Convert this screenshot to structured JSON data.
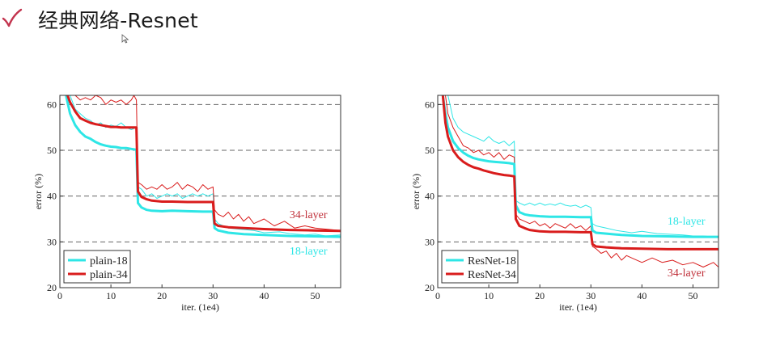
{
  "slide": {
    "title": "经典网络-Resnet",
    "accent_color": "#c2334d",
    "icons": {
      "bullet": "checkmark-icon",
      "cursor": "mouse-pointer-icon"
    }
  },
  "chart_data": [
    {
      "type": "line",
      "title": "",
      "xlabel": "iter. (1e4)",
      "ylabel": "error (%)",
      "xlim": [
        0,
        55
      ],
      "ylim": [
        20,
        62
      ],
      "xticks": [
        0,
        10,
        20,
        30,
        40,
        50
      ],
      "yticks": [
        20,
        30,
        40,
        50,
        60
      ],
      "grid": "dashed horizontal at 30, 40, 50, 60",
      "legend_position": "bottom-left",
      "legend": [
        {
          "label": "plain-18",
          "color": "#2ee6e6"
        },
        {
          "label": "plain-34",
          "color": "#d91c1c"
        }
      ],
      "annotations": [
        {
          "text": "34-layer",
          "x": 45,
          "y": 35.2,
          "color": "#c0303a"
        },
        {
          "text": "18-layer",
          "x": 45,
          "y": 27.2,
          "color": "#2ee6e6"
        }
      ],
      "series": [
        {
          "name": "plain-18",
          "role": "val",
          "color": "#2ee6e6",
          "width": 3,
          "x": [
            1.2,
            2,
            3,
            4,
            5,
            6,
            7,
            8,
            9,
            10,
            11,
            12,
            13,
            14,
            15,
            15.3,
            16,
            17,
            18,
            20,
            22,
            25,
            28,
            30,
            30.3,
            31,
            33,
            36,
            40,
            45,
            50,
            55
          ],
          "y": [
            62,
            58,
            55.5,
            54,
            53,
            52.5,
            51.8,
            51.3,
            51,
            50.8,
            50.7,
            50.5,
            50.5,
            50.3,
            50.1,
            38.5,
            37.5,
            37,
            36.8,
            36.7,
            36.8,
            36.7,
            36.6,
            36.6,
            33,
            32.5,
            32,
            31.7,
            31.5,
            31.3,
            31.2,
            31.1
          ]
        },
        {
          "name": "plain-34",
          "role": "val",
          "color": "#d91c1c",
          "width": 3,
          "x": [
            1.5,
            2,
            3,
            4,
            5,
            6,
            7,
            8,
            9,
            10,
            11,
            12,
            13,
            14,
            15,
            15.3,
            16,
            17,
            18,
            20,
            22,
            25,
            28,
            30,
            30.3,
            31,
            33,
            36,
            40,
            45,
            50,
            55
          ],
          "y": [
            62,
            60.5,
            58.5,
            57,
            56.5,
            56,
            55.7,
            55.5,
            55.3,
            55.1,
            55.1,
            55,
            55,
            55,
            55,
            41,
            39.8,
            39.3,
            39,
            38.8,
            38.8,
            38.7,
            38.7,
            38.7,
            34,
            33.5,
            33.2,
            33,
            32.8,
            32.6,
            32.5,
            32.4
          ]
        },
        {
          "name": "plain-18",
          "role": "train",
          "color": "#2ee6e6",
          "width": 1,
          "x": [
            2,
            3,
            4,
            5,
            6,
            7,
            8,
            9,
            10,
            11,
            12,
            13,
            14,
            15,
            15.3,
            16,
            17,
            18,
            19,
            20,
            21,
            22,
            23,
            24,
            25,
            26,
            27,
            28,
            29,
            30,
            30.3,
            31,
            33,
            35,
            38,
            40,
            43,
            45,
            48,
            50,
            52,
            55
          ],
          "y": [
            62,
            59,
            58,
            57,
            56.5,
            55.5,
            56,
            55,
            55.5,
            55.2,
            56,
            55,
            54.5,
            55,
            42,
            41.5,
            40,
            40.5,
            39.5,
            40,
            40.5,
            40,
            40.5,
            39.5,
            40,
            40.5,
            40,
            40.5,
            40,
            40.5,
            35,
            34,
            33,
            32.8,
            32.5,
            32,
            32.2,
            31.8,
            31.5,
            31.7,
            31.3,
            31.5
          ]
        },
        {
          "name": "plain-34",
          "role": "train",
          "color": "#d91c1c",
          "width": 1,
          "x": [
            3,
            4,
            5,
            6,
            7,
            8,
            9,
            10,
            11,
            12,
            13,
            14,
            14.5,
            15,
            15.3,
            16,
            17,
            18,
            19,
            20,
            21,
            22,
            23,
            24,
            25,
            26,
            27,
            28,
            29,
            30,
            30.3,
            31,
            32,
            33,
            34,
            35,
            36,
            37,
            38,
            40,
            42,
            44,
            46,
            48,
            50,
            52,
            55
          ],
          "y": [
            62,
            61,
            61.5,
            61,
            62,
            61.5,
            60,
            61,
            60.5,
            61,
            60,
            61,
            62,
            61,
            43,
            42.5,
            41.5,
            42,
            41.5,
            42.5,
            41.5,
            42,
            43,
            41.5,
            42.5,
            42,
            41,
            42.5,
            41.5,
            42,
            37,
            36,
            35.5,
            36.5,
            35,
            36,
            34.5,
            35.5,
            34,
            35,
            33.5,
            34.5,
            33,
            33.5,
            33,
            32.8,
            32.5
          ]
        }
      ]
    },
    {
      "type": "line",
      "title": "",
      "xlabel": "iter. (1e4)",
      "ylabel": "error (%)",
      "xlim": [
        0,
        55
      ],
      "ylim": [
        20,
        62
      ],
      "xticks": [
        0,
        10,
        20,
        30,
        40,
        50
      ],
      "yticks": [
        20,
        30,
        40,
        50,
        60
      ],
      "grid": "dashed horizontal at 30, 40, 50, 60",
      "legend_position": "bottom-left",
      "legend": [
        {
          "label": "ResNet-18",
          "color": "#2ee6e6"
        },
        {
          "label": "ResNet-34",
          "color": "#d91c1c"
        }
      ],
      "annotations": [
        {
          "text": "18-layer",
          "x": 45,
          "y": 33.8,
          "color": "#2ee6e6"
        },
        {
          "text": "34-layer",
          "x": 45,
          "y": 22.5,
          "color": "#c0303a"
        }
      ],
      "series": [
        {
          "name": "ResNet-18",
          "role": "val",
          "color": "#2ee6e6",
          "width": 3,
          "x": [
            1,
            1.5,
            2,
            3,
            4,
            5,
            6,
            7,
            8,
            9,
            10,
            11,
            12,
            13,
            14,
            15,
            15.3,
            16,
            17,
            18,
            20,
            22,
            25,
            28,
            30,
            30.3,
            31,
            33,
            36,
            40,
            45,
            50,
            55
          ],
          "y": [
            62,
            58,
            55,
            52,
            50.5,
            49.5,
            48.8,
            48.3,
            48,
            47.8,
            47.6,
            47.5,
            47.4,
            47.3,
            47.2,
            47,
            38,
            36.5,
            36,
            35.8,
            35.6,
            35.5,
            35.5,
            35.4,
            35.4,
            32.5,
            32,
            31.8,
            31.5,
            31.3,
            31.2,
            31.1,
            31.1
          ]
        },
        {
          "name": "ResNet-34",
          "role": "val",
          "color": "#d91c1c",
          "width": 3,
          "x": [
            1,
            1.5,
            2,
            3,
            4,
            5,
            6,
            7,
            8,
            9,
            10,
            11,
            12,
            13,
            14,
            15,
            15.3,
            16,
            17,
            18,
            20,
            22,
            25,
            28,
            30,
            30.3,
            31,
            33,
            36,
            40,
            45,
            50,
            55
          ],
          "y": [
            62,
            56,
            53,
            50,
            48.5,
            47.5,
            46.8,
            46.3,
            46,
            45.6,
            45.3,
            45,
            44.8,
            44.6,
            44.5,
            44.3,
            35,
            33.5,
            33,
            32.6,
            32.3,
            32.2,
            32.2,
            32.1,
            32.1,
            29.5,
            29,
            28.8,
            28.6,
            28.5,
            28.4,
            28.4,
            28.4
          ]
        },
        {
          "name": "ResNet-18",
          "role": "train",
          "color": "#2ee6e6",
          "width": 1,
          "x": [
            2,
            3,
            4,
            5,
            6,
            7,
            8,
            9,
            10,
            11,
            12,
            13,
            14,
            15,
            15.3,
            16,
            17,
            18,
            19,
            20,
            21,
            22,
            23,
            24,
            25,
            26,
            27,
            28,
            29,
            30,
            30.3,
            31,
            33,
            35,
            38,
            40,
            43,
            45,
            48,
            50,
            52,
            55
          ],
          "y": [
            62,
            57,
            55,
            54,
            53.5,
            53,
            52.5,
            52,
            53,
            52,
            51.5,
            52,
            51,
            52,
            39,
            38.5,
            38,
            38.5,
            38,
            38.5,
            38,
            38.3,
            38,
            38.5,
            38,
            37.8,
            38,
            37.5,
            38,
            37.5,
            34,
            33.5,
            33,
            32.5,
            32,
            32.3,
            31.8,
            31.7,
            31.5,
            31.3,
            31.3,
            31
          ]
        },
        {
          "name": "ResNet-34",
          "role": "train",
          "color": "#d91c1c",
          "width": 1,
          "x": [
            1.5,
            2,
            3,
            4,
            5,
            6,
            7,
            8,
            9,
            10,
            11,
            12,
            13,
            14,
            15,
            15.3,
            16,
            17,
            18,
            19,
            20,
            21,
            22,
            23,
            24,
            25,
            26,
            27,
            28,
            29,
            30,
            30.3,
            31,
            32,
            33,
            34,
            35,
            36,
            37,
            38,
            40,
            42,
            44,
            46,
            48,
            50,
            52,
            54,
            55
          ],
          "y": [
            62,
            58,
            55,
            53,
            51,
            50.5,
            49.5,
            50,
            49,
            49.5,
            48.5,
            49.5,
            48,
            49,
            48.5,
            36,
            35,
            34.5,
            34,
            34.5,
            33.5,
            34,
            33,
            34,
            33.5,
            33,
            34,
            33,
            33.5,
            32.5,
            33.5,
            29,
            28.5,
            27.5,
            28,
            26.5,
            27.5,
            26,
            27,
            26.5,
            25.5,
            26.5,
            25.5,
            26,
            25,
            25.5,
            24.5,
            25.5,
            24.5
          ]
        }
      ]
    }
  ]
}
